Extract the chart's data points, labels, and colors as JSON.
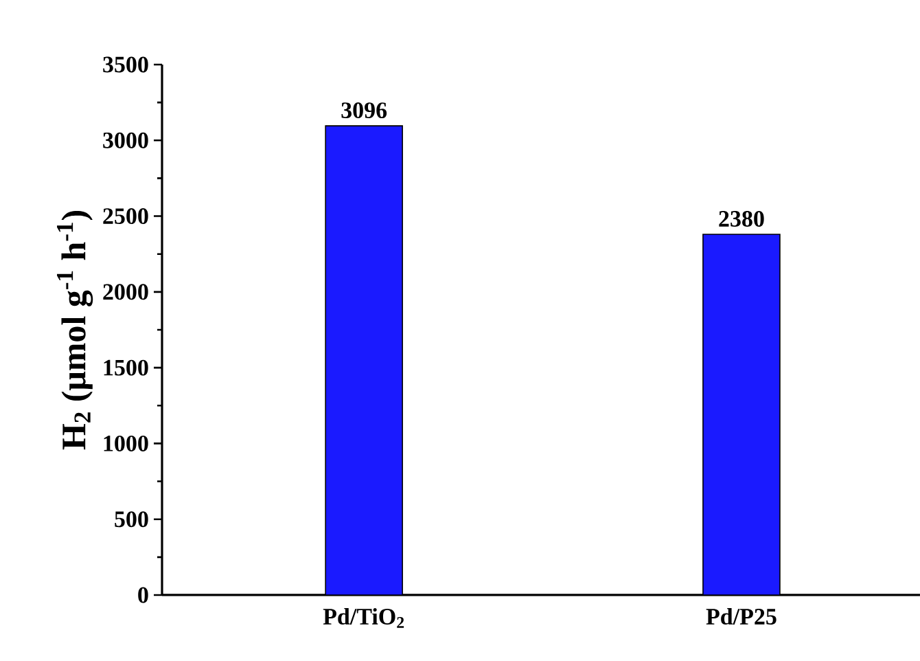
{
  "chart_data": {
    "type": "bar",
    "ylabel": "H$_{2}$ (μmol g$^{-1}$ h$^{-1}$)",
    "categories": [
      "Pd/TiO$_{2}$",
      "Pd/P25"
    ],
    "values": [
      3096,
      2380
    ],
    "color": "#1a1aff",
    "ylim": [
      0,
      3500
    ],
    "yticks": [
      0,
      500,
      1000,
      1500,
      2000,
      2500,
      3000,
      3500
    ],
    "data_labels": true
  }
}
